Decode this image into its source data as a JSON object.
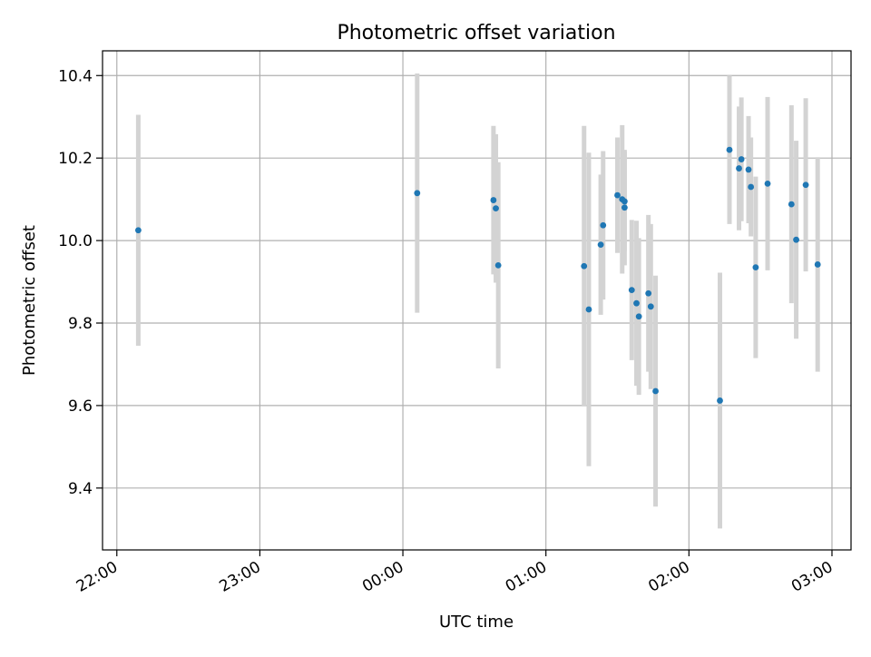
{
  "chart_data": {
    "type": "scatter",
    "title": "Photometric offset variation",
    "xlabel": "UTC time",
    "ylabel": "Photometric offset",
    "x_ticks": [
      "22:00",
      "23:00",
      "00:00",
      "01:00",
      "02:00",
      "03:00"
    ],
    "y_ticks": [
      "9.4",
      "9.6",
      "9.8",
      "10.0",
      "10.2",
      "10.4"
    ],
    "xlim": [
      "21:54",
      "03:08"
    ],
    "ylim": [
      9.25,
      10.46
    ],
    "grid": true,
    "colors": {
      "point": "#1f77b4",
      "errorbar": "#d3d3d3",
      "grid": "#b0b0b0",
      "axis": "#000000"
    },
    "series": [
      {
        "points": [
          {
            "x": "22:09",
            "y": 10.025,
            "err": 0.28
          },
          {
            "x": "00:06",
            "y": 10.115,
            "err": 0.29
          },
          {
            "x": "00:38",
            "y": 10.098,
            "err": 0.18
          },
          {
            "x": "00:39",
            "y": 10.078,
            "err": 0.18
          },
          {
            "x": "00:40",
            "y": 9.94,
            "err": 0.25
          },
          {
            "x": "01:16",
            "y": 9.938,
            "err": 0.34
          },
          {
            "x": "01:18",
            "y": 9.833,
            "err": 0.38
          },
          {
            "x": "01:23",
            "y": 9.99,
            "err": 0.17
          },
          {
            "x": "01:24",
            "y": 10.037,
            "err": 0.18
          },
          {
            "x": "01:30",
            "y": 10.11,
            "err": 0.14
          },
          {
            "x": "01:32",
            "y": 10.1,
            "err": 0.18
          },
          {
            "x": "01:33",
            "y": 10.095,
            "err": 0.12
          },
          {
            "x": "01:33",
            "y": 10.08,
            "err": 0.14
          },
          {
            "x": "01:36",
            "y": 9.88,
            "err": 0.17
          },
          {
            "x": "01:38",
            "y": 9.848,
            "err": 0.2
          },
          {
            "x": "01:39",
            "y": 9.816,
            "err": 0.19
          },
          {
            "x": "01:43",
            "y": 9.872,
            "err": 0.19
          },
          {
            "x": "01:44",
            "y": 9.84,
            "err": 0.2
          },
          {
            "x": "01:46",
            "y": 9.635,
            "err": 0.28
          },
          {
            "x": "02:13",
            "y": 9.612,
            "err": 0.31
          },
          {
            "x": "02:17",
            "y": 10.22,
            "err": 0.18
          },
          {
            "x": "02:21",
            "y": 10.175,
            "err": 0.15
          },
          {
            "x": "02:22",
            "y": 10.197,
            "err": 0.15
          },
          {
            "x": "02:25",
            "y": 10.172,
            "err": 0.13
          },
          {
            "x": "02:26",
            "y": 10.13,
            "err": 0.12
          },
          {
            "x": "02:28",
            "y": 9.935,
            "err": 0.22
          },
          {
            "x": "02:33",
            "y": 10.138,
            "err": 0.21
          },
          {
            "x": "02:43",
            "y": 10.088,
            "err": 0.24
          },
          {
            "x": "02:45",
            "y": 10.002,
            "err": 0.24
          },
          {
            "x": "02:49",
            "y": 10.135,
            "err": 0.21
          },
          {
            "x": "02:54",
            "y": 9.942,
            "err": 0.26
          }
        ]
      }
    ]
  }
}
